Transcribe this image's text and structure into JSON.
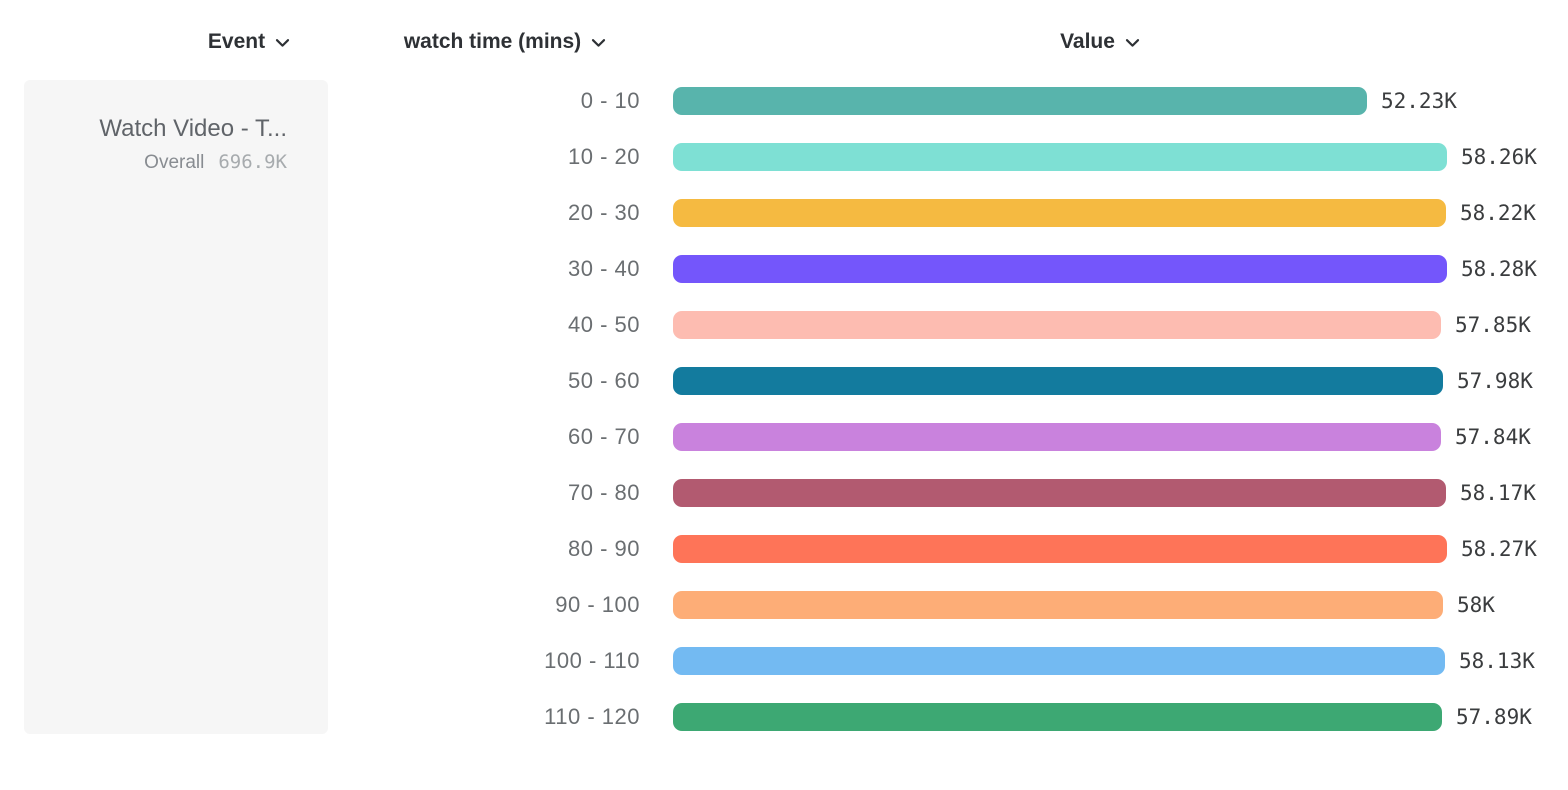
{
  "header": {
    "columns": [
      {
        "label": "Event",
        "icon": "chevron-down-icon"
      },
      {
        "label": "watch time (mins)",
        "icon": "chevron-down-icon"
      },
      {
        "label": "Value",
        "icon": "chevron-down-icon"
      }
    ]
  },
  "event_card": {
    "event_name": "Watch Video - T...",
    "overall_label": "Overall",
    "overall_value": "696.9K"
  },
  "chart_data": {
    "type": "bar",
    "orientation": "horizontal",
    "title": "",
    "xlabel": "Value",
    "ylabel": "watch time (mins)",
    "categories": [
      "0 - 10",
      "10 - 20",
      "20 - 30",
      "30 - 40",
      "40 - 50",
      "50 - 60",
      "60 - 70",
      "70 - 80",
      "80 - 90",
      "90 - 100",
      "100 - 110",
      "110 - 120"
    ],
    "values": [
      52.23,
      58.26,
      58.22,
      58.28,
      57.85,
      57.98,
      57.84,
      58.17,
      58.27,
      58.0,
      58.13,
      57.89
    ],
    "value_labels": [
      "52.23K",
      "58.26K",
      "58.22K",
      "58.28K",
      "57.85K",
      "57.98K",
      "57.84K",
      "58.17K",
      "58.27K",
      "58K",
      "58.13K",
      "57.89K"
    ],
    "unit": "K",
    "xlim": [
      0,
      58.28
    ],
    "grid": false,
    "legend": "none",
    "colors": [
      "#58b4ac",
      "#7ee0d4",
      "#f5ba41",
      "#7456fb",
      "#fdbcb1",
      "#137b9e",
      "#c982dd",
      "#b25a70",
      "#fe7458",
      "#fdad77",
      "#73baf2",
      "#3da873"
    ]
  }
}
